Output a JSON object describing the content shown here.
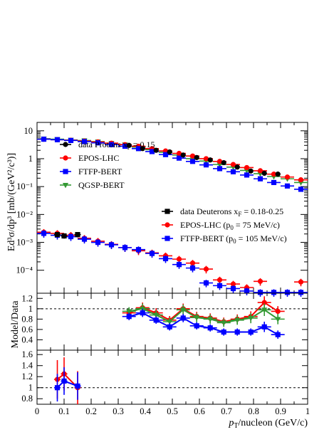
{
  "colors": {
    "data_protons": "#000000",
    "data_deuterons": "#000000",
    "epos": "#ff0000",
    "ftfp": "#0000ff",
    "qgsp": "#339933"
  },
  "chart_data": [
    {
      "type": "scatter",
      "panel": "spectra",
      "ylabel": "Ed³σ/dp³  [mb/(GeV²/c³)]",
      "yscale": "log",
      "ylim": [
        1.5e-05,
        20
      ],
      "xlim": [
        0,
        1
      ],
      "yticks": [
        {
          "value": 10,
          "label": "10"
        },
        {
          "value": 1,
          "label": "1"
        },
        {
          "value": 0.1,
          "label": "10⁻¹"
        },
        {
          "value": 0.01,
          "label": "10⁻²"
        },
        {
          "value": 0.001,
          "label": "10⁻³"
        },
        {
          "value": 0.0001,
          "label": "10⁻⁴"
        }
      ],
      "legend_protons": [
        {
          "label": "data Protons x",
          "sub": "F",
          "tail": " = 0.15",
          "series": "protons_data"
        },
        {
          "label": "EPOS-LHC",
          "series": "protons_epos"
        },
        {
          "label": "FTFP-BERT",
          "series": "protons_ftfp"
        },
        {
          "label": "QGSP-BERT",
          "series": "protons_qgsp"
        }
      ],
      "legend_deuterons": [
        {
          "label": "data Deuterons x",
          "sub": "F",
          "tail": " = 0.18-0.25",
          "series": "deut_data"
        },
        {
          "label": "EPOS-LHC (p",
          "sub": "0",
          "tail": " = 75 MeV/c)",
          "series": "deut_epos"
        },
        {
          "label": "FTFP-BERT (p",
          "sub": "0",
          "tail": " = 105 MeV/c)",
          "series": "deut_ftfp"
        }
      ],
      "series": [
        {
          "key": "protons_qgsp",
          "color": "qgsp",
          "marker": "triangle-down",
          "points": [
            [
              0.025,
              5.2,
              0.025
            ],
            [
              0.075,
              5.0,
              0.025
            ],
            [
              0.125,
              4.7,
              0.025
            ],
            [
              0.175,
              4.5,
              0.025
            ],
            [
              0.225,
              4.1,
              0.025
            ],
            [
              0.275,
              3.6,
              0.025
            ],
            [
              0.325,
              3.2,
              0.025
            ],
            [
              0.375,
              2.6,
              0.025
            ],
            [
              0.425,
              2.1,
              0.025
            ],
            [
              0.475,
              1.7,
              0.025
            ],
            [
              0.525,
              1.35,
              0.025
            ],
            [
              0.575,
              1.0,
              0.025
            ],
            [
              0.625,
              0.82,
              0.025
            ],
            [
              0.675,
              0.62,
              0.025
            ],
            [
              0.725,
              0.5,
              0.025
            ],
            [
              0.775,
              0.38,
              0.025
            ],
            [
              0.825,
              0.29,
              0.025
            ],
            [
              0.875,
              0.23,
              0.025
            ],
            [
              0.925,
              0.19,
              0.025
            ],
            [
              0.975,
              0.14,
              0.025
            ]
          ]
        },
        {
          "key": "protons_epos",
          "color": "epos",
          "marker": "circle",
          "points": [
            [
              0.025,
              5.0,
              0.025
            ],
            [
              0.075,
              4.8,
              0.025
            ],
            [
              0.125,
              4.6,
              0.025
            ],
            [
              0.175,
              4.3,
              0.025
            ],
            [
              0.225,
              4.0,
              0.025
            ],
            [
              0.275,
              3.6,
              0.025
            ],
            [
              0.325,
              3.2,
              0.025
            ],
            [
              0.375,
              2.8,
              0.025
            ],
            [
              0.425,
              2.3,
              0.025
            ],
            [
              0.475,
              1.9,
              0.025
            ],
            [
              0.525,
              1.55,
              0.025
            ],
            [
              0.575,
              1.25,
              0.025
            ],
            [
              0.625,
              1.0,
              0.025
            ],
            [
              0.675,
              0.8,
              0.025
            ],
            [
              0.725,
              0.62,
              0.025
            ],
            [
              0.775,
              0.48,
              0.025
            ],
            [
              0.825,
              0.37,
              0.025
            ],
            [
              0.875,
              0.28,
              0.025
            ],
            [
              0.925,
              0.22,
              0.025
            ],
            [
              0.975,
              0.175,
              0.025
            ]
          ]
        },
        {
          "key": "protons_ftfp",
          "color": "ftfp",
          "marker": "square",
          "points": [
            [
              0.025,
              5.0,
              0.025
            ],
            [
              0.075,
              4.8,
              0.025
            ],
            [
              0.125,
              4.5,
              0.025
            ],
            [
              0.175,
              4.1,
              0.025
            ],
            [
              0.225,
              3.7,
              0.025
            ],
            [
              0.275,
              3.2,
              0.025
            ],
            [
              0.325,
              2.8,
              0.025
            ],
            [
              0.375,
              2.3,
              0.025
            ],
            [
              0.425,
              1.8,
              0.025
            ],
            [
              0.475,
              1.4,
              0.025
            ],
            [
              0.525,
              1.05,
              0.025
            ],
            [
              0.575,
              0.8,
              0.025
            ],
            [
              0.625,
              0.6,
              0.025
            ],
            [
              0.675,
              0.44,
              0.025
            ],
            [
              0.725,
              0.34,
              0.025
            ],
            [
              0.775,
              0.26,
              0.025
            ],
            [
              0.825,
              0.19,
              0.025
            ],
            [
              0.875,
              0.14,
              0.025
            ],
            [
              0.925,
              0.105,
              0.025
            ],
            [
              0.975,
              0.08,
              0.025
            ]
          ]
        },
        {
          "key": "protons_data",
          "color": "data_protons",
          "marker": "circle",
          "points": [
            [
              0.34,
              3.0,
              0
            ],
            [
              0.39,
              2.3,
              0
            ],
            [
              0.44,
              2.0,
              0
            ],
            [
              0.49,
              1.75,
              0
            ],
            [
              0.54,
              1.35,
              0
            ],
            [
              0.59,
              1.1,
              0
            ],
            [
              0.64,
              0.9,
              0
            ],
            [
              0.69,
              0.72,
              0
            ],
            [
              0.74,
              0.5,
              0
            ],
            [
              0.79,
              0.36,
              0
            ],
            [
              0.84,
              0.3,
              0
            ],
            [
              0.89,
              0.28,
              0
            ]
          ]
        },
        {
          "key": "deut_epos",
          "color": "epos",
          "marker": "circle",
          "yerr": 0.15,
          "points": [
            [
              0.025,
              0.0023,
              0.025
            ],
            [
              0.075,
              0.0021,
              0.025
            ],
            [
              0.125,
              0.0018,
              0.025
            ],
            [
              0.175,
              0.0014,
              0.025
            ],
            [
              0.225,
              0.0011,
              0.025
            ],
            [
              0.275,
              0.00085,
              0.025
            ],
            [
              0.325,
              0.00065,
              0.025
            ],
            [
              0.375,
              0.0005,
              0.025
            ],
            [
              0.425,
              0.00042,
              0.025
            ],
            [
              0.475,
              0.00033,
              0.025
            ],
            [
              0.525,
              0.00025,
              0.025
            ],
            [
              0.575,
              0.00018,
              0.025
            ],
            [
              0.625,
              0.00011,
              0.025
            ],
            [
              0.675,
              4.5e-05,
              0.025
            ],
            [
              0.725,
              3.2e-05,
              0.025
            ],
            [
              0.775,
              2.4e-05,
              0.025
            ],
            [
              0.825,
              4e-05,
              0.025
            ],
            [
              0.975,
              3.8e-05,
              0.025
            ]
          ]
        },
        {
          "key": "deut_ftfp",
          "color": "ftfp",
          "marker": "square",
          "yerr": 0.15,
          "points": [
            [
              0.025,
              0.0021,
              0.025
            ],
            [
              0.075,
              0.0018,
              0.025
            ],
            [
              0.125,
              0.0016,
              0.025
            ],
            [
              0.175,
              0.0013,
              0.025
            ],
            [
              0.225,
              0.001,
              0.025
            ],
            [
              0.275,
              0.00082,
              0.025
            ],
            [
              0.325,
              0.00065,
              0.025
            ],
            [
              0.375,
              0.00055,
              0.025
            ],
            [
              0.425,
              0.0004,
              0.025
            ],
            [
              0.475,
              0.00026,
              0.025
            ],
            [
              0.525,
              0.00016,
              0.025
            ],
            [
              0.575,
              0.00012,
              0.025
            ],
            [
              0.625,
              3.5e-05,
              0.025
            ],
            [
              0.675,
              2.8e-05,
              0.025
            ],
            [
              0.725,
              2.2e-05,
              0.025
            ],
            [
              0.775,
              1.8e-05,
              0.025
            ],
            [
              0.825,
              1.6e-05,
              0.025
            ],
            [
              0.875,
              1.6e-05,
              0.025
            ],
            [
              0.925,
              1.6e-05,
              0.025
            ],
            [
              0.975,
              1.6e-05,
              0.025
            ]
          ]
        },
        {
          "key": "deut_data",
          "color": "data_deuterons",
          "marker": "square",
          "yerr": 0.1,
          "points": [
            [
              0.075,
              0.0019,
              0.012
            ],
            [
              0.1,
              0.0017,
              0.012
            ],
            [
              0.15,
              0.0019,
              0.012
            ]
          ]
        }
      ]
    },
    {
      "type": "line",
      "panel": "ratio_protons",
      "ylabel": "Model/Data",
      "ylim": [
        0.2,
        1.3
      ],
      "xlim": [
        0,
        1
      ],
      "yticks": [
        {
          "value": 0.4,
          "label": "0.4"
        },
        {
          "value": 0.6,
          "label": "0.6"
        },
        {
          "value": 0.8,
          "label": "0.8"
        },
        {
          "value": 1.0,
          "label": "1"
        },
        {
          "value": 1.2,
          "label": "1.2"
        }
      ],
      "reference_line": 1.0,
      "x": [
        0.34,
        0.39,
        0.44,
        0.49,
        0.54,
        0.59,
        0.64,
        0.69,
        0.74,
        0.79,
        0.84,
        0.89
      ],
      "series": [
        {
          "key": "epos",
          "color": "epos",
          "marker": "circle",
          "values": [
            0.92,
            1.02,
            0.92,
            0.78,
            1.0,
            0.85,
            0.82,
            0.75,
            0.8,
            0.85,
            1.12,
            0.95
          ],
          "yerr": [
            0.08,
            0.1,
            0.09,
            0.08,
            0.1,
            0.09,
            0.09,
            0.08,
            0.09,
            0.1,
            0.12,
            0.1
          ]
        },
        {
          "key": "qgsp",
          "color": "qgsp",
          "marker": "triangle-down",
          "values": [
            0.95,
            1.0,
            0.88,
            0.75,
            0.98,
            0.83,
            0.8,
            0.73,
            0.78,
            0.82,
            0.98,
            0.8
          ],
          "yerr": [
            0.08,
            0.1,
            0.09,
            0.08,
            0.1,
            0.09,
            0.09,
            0.08,
            0.09,
            0.1,
            0.12,
            0.1
          ]
        },
        {
          "key": "ftfp",
          "color": "ftfp",
          "marker": "square",
          "values": [
            0.85,
            0.92,
            0.78,
            0.65,
            0.82,
            0.67,
            0.63,
            0.55,
            0.55,
            0.55,
            0.65,
            0.5
          ],
          "yerr": [
            0.07,
            0.08,
            0.07,
            0.07,
            0.08,
            0.07,
            0.07,
            0.07,
            0.07,
            0.07,
            0.1,
            0.08
          ]
        }
      ],
      "x_widths": 0.025
    },
    {
      "type": "line",
      "panel": "ratio_deuterons",
      "xlabel": "p_T/nucleon (GeV/c)",
      "ylim": [
        0.7,
        1.68
      ],
      "xlim": [
        0,
        1
      ],
      "yticks": [
        {
          "value": 0.8,
          "label": "0.8"
        },
        {
          "value": 1.0,
          "label": "1"
        },
        {
          "value": 1.2,
          "label": "1.2"
        },
        {
          "value": 1.4,
          "label": "1.4"
        },
        {
          "value": 1.6,
          "label": "1.6"
        }
      ],
      "xticks": [
        {
          "value": 0,
          "label": "0"
        },
        {
          "value": 0.1,
          "label": "0.1"
        },
        {
          "value": 0.2,
          "label": "0.2"
        },
        {
          "value": 0.3,
          "label": "0.3"
        },
        {
          "value": 0.4,
          "label": "0.4"
        },
        {
          "value": 0.5,
          "label": "0.5"
        },
        {
          "value": 0.6,
          "label": "0.6"
        },
        {
          "value": 0.7,
          "label": "0.7"
        },
        {
          "value": 0.8,
          "label": "0.8"
        },
        {
          "value": 0.9,
          "label": "0.9"
        },
        {
          "value": 1.0,
          "label": "1"
        }
      ],
      "reference_line": 1.0,
      "x": [
        0.075,
        0.1,
        0.15
      ],
      "series": [
        {
          "key": "epos",
          "color": "epos",
          "marker": "circle",
          "values": [
            1.15,
            1.25,
            1.0
          ],
          "yerr": [
            0.35,
            0.3,
            0.3
          ]
        },
        {
          "key": "ftfp",
          "color": "ftfp",
          "marker": "square",
          "values": [
            1.0,
            1.12,
            1.03
          ],
          "yerr": [
            0.25,
            0.25,
            0.25
          ]
        }
      ],
      "x_widths": 0.012
    }
  ]
}
